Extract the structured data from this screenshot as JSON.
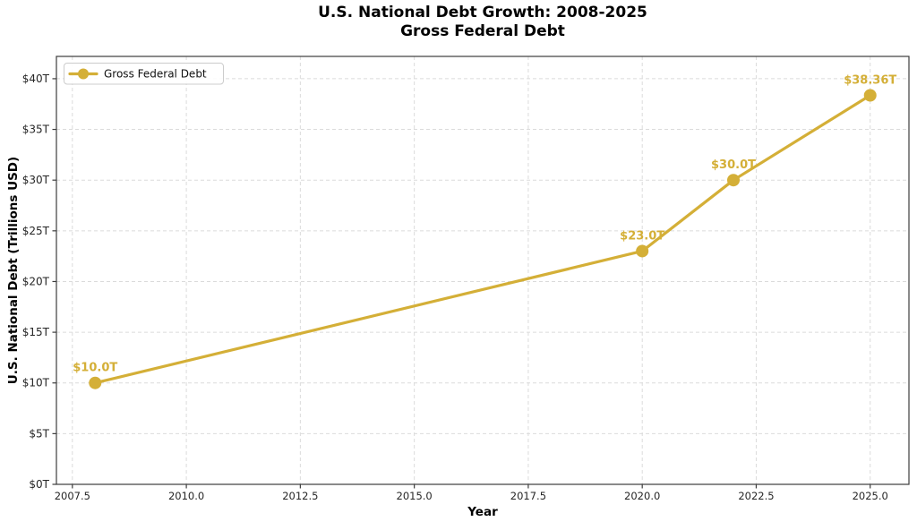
{
  "figure": {
    "background": "#ffffff"
  },
  "chart_data": {
    "type": "line",
    "title": "U.S. National Debt Growth: 2008-2025",
    "subtitle": "Gross Federal Debt",
    "xlabel": "Year",
    "ylabel": "U.S. National Debt (Trillions USD)",
    "series": [
      {
        "name": "Gross Federal Debt",
        "x": [
          2008,
          2020,
          2022,
          2025
        ],
        "y": [
          10.0,
          23.0,
          30.0,
          38.36
        ],
        "point_labels": [
          "$10.0T",
          "$23.0T",
          "$30.0T",
          "$38.36T"
        ]
      }
    ],
    "xlim": [
      2007.15,
      2025.85
    ],
    "ylim": [
      0,
      42.2
    ],
    "xticks": {
      "values": [
        2007.5,
        2010.0,
        2012.5,
        2015.0,
        2017.5,
        2020.0,
        2022.5,
        2025.0
      ],
      "labels": [
        "2007.5",
        "2010.0",
        "2012.5",
        "2015.0",
        "2017.5",
        "2020.0",
        "2022.5",
        "2025.0"
      ]
    },
    "yticks": {
      "values": [
        0,
        5,
        10,
        15,
        20,
        25,
        30,
        35,
        40
      ],
      "labels": [
        "$0T",
        "$5T",
        "$10T",
        "$15T",
        "$20T",
        "$25T",
        "$30T",
        "$35T",
        "$40T"
      ]
    },
    "grid": "dashed",
    "legend": {
      "position": "upper-left",
      "entries": [
        "Gross Federal Debt"
      ]
    },
    "colors": {
      "line": "#d4af37",
      "marker": "#d4af37",
      "annotation": "#d4af37",
      "grid": "#dbdbdb",
      "spine": "#3c3c3c",
      "tick_text": "#262626",
      "title_text": "#000000",
      "legend_border": "#cccccc",
      "legend_background": "#ffffff",
      "background": "#ffffff"
    }
  }
}
